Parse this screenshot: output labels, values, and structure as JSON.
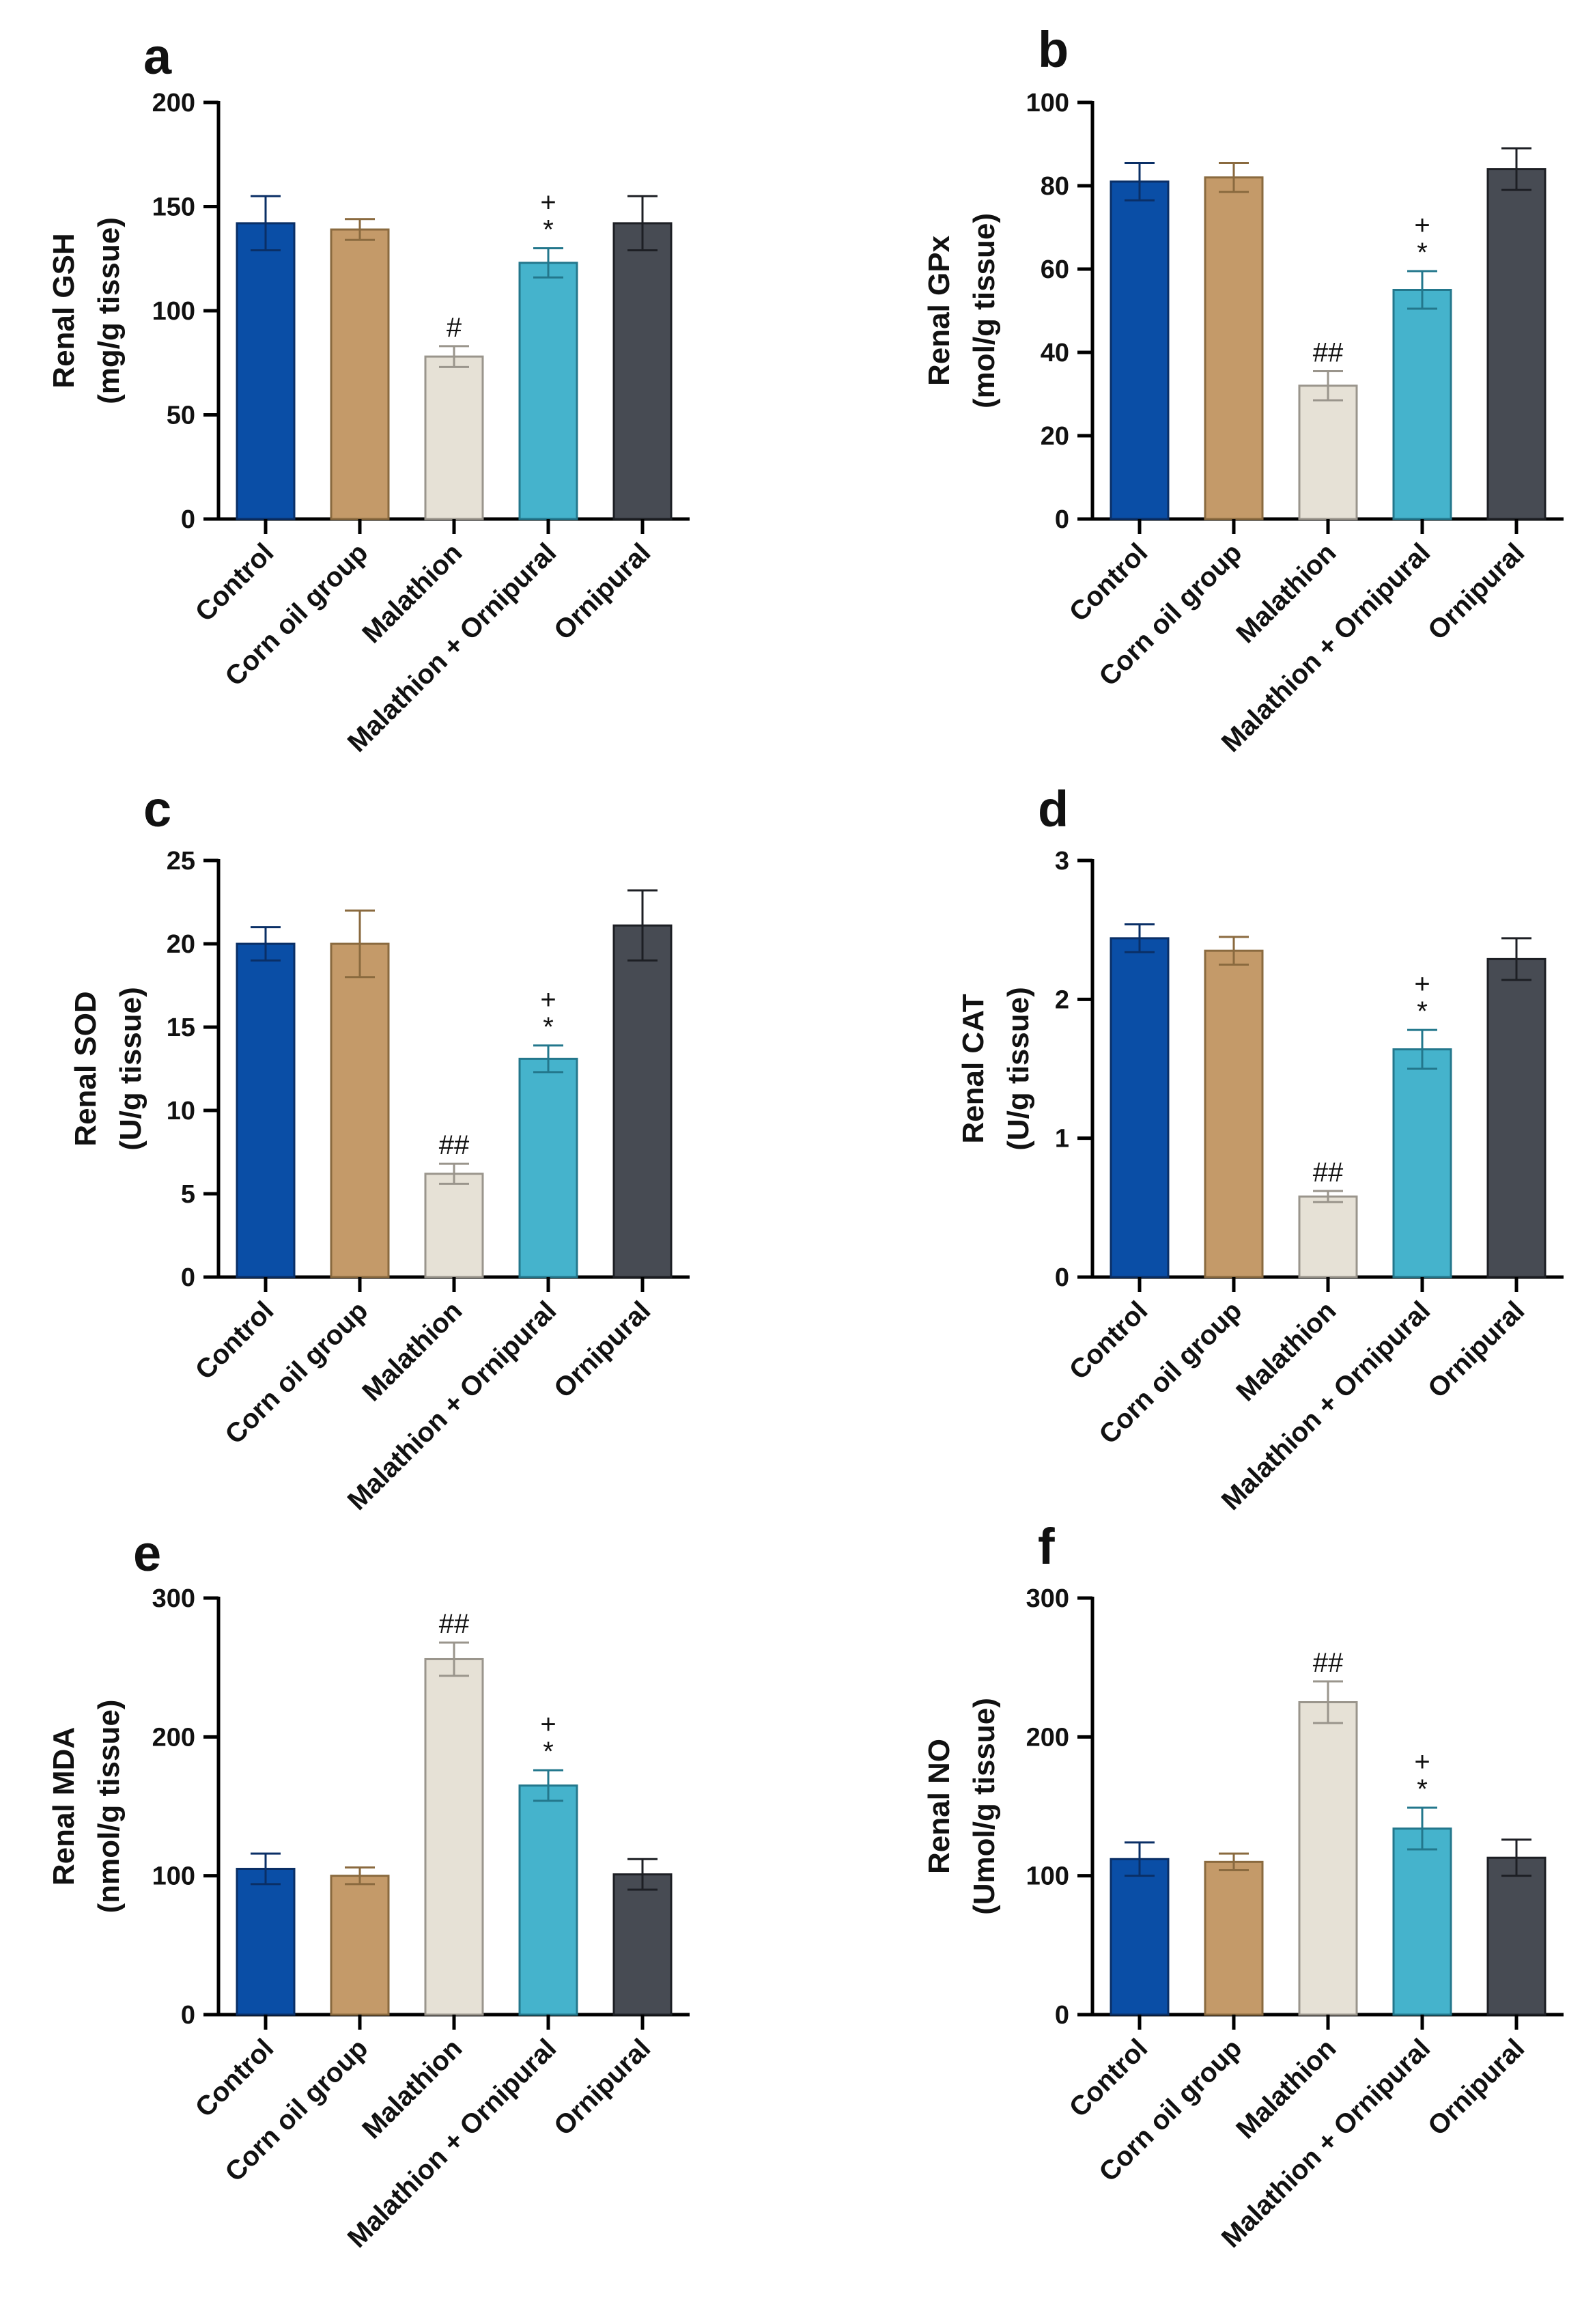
{
  "chart_data": [
    {
      "type": "bar",
      "panel": "a",
      "categories": [
        "Control",
        "Corn oil group",
        "Malathion",
        "Malathion + Ornipural",
        "Ornipural"
      ],
      "values": [
        142,
        139,
        78,
        123,
        142
      ],
      "errors": [
        13,
        5,
        5,
        7,
        13
      ],
      "annotations": [
        "",
        "",
        "#",
        "+\n*",
        ""
      ],
      "ylabel": [
        "Renal GSH",
        "(mg/g tissue)"
      ],
      "ylim": [
        0,
        200
      ],
      "yticks": [
        0,
        50,
        100,
        150,
        200
      ]
    },
    {
      "type": "bar",
      "panel": "b",
      "categories": [
        "Control",
        "Corn oil group",
        "Malathion",
        "Malathion + Ornipural",
        "Ornipural"
      ],
      "values": [
        81,
        82,
        32,
        55,
        84
      ],
      "errors": [
        4.5,
        3.5,
        3.5,
        4.5,
        5
      ],
      "annotations": [
        "",
        "",
        "##",
        "+\n*",
        ""
      ],
      "ylabel": [
        "Renal GPx",
        "(mol/g tissue)"
      ],
      "ylim": [
        0,
        100
      ],
      "yticks": [
        0,
        20,
        40,
        60,
        80,
        100
      ]
    },
    {
      "type": "bar",
      "panel": "c",
      "categories": [
        "Control",
        "Corn oil group",
        "Malathion",
        "Malathion + Ornipural",
        "Ornipural"
      ],
      "values": [
        20,
        20,
        6.2,
        13.1,
        21.1
      ],
      "errors": [
        1,
        2,
        0.6,
        0.8,
        2.1
      ],
      "annotations": [
        "",
        "",
        "##",
        "+\n*",
        ""
      ],
      "ylabel": [
        "Renal SOD",
        "(U/g tissue)"
      ],
      "ylim": [
        0,
        25
      ],
      "yticks": [
        0,
        5,
        10,
        15,
        20,
        25
      ]
    },
    {
      "type": "bar",
      "panel": "d",
      "categories": [
        "Control",
        "Corn oil group",
        "Malathion",
        "Malathion + Ornipural",
        "Ornipural"
      ],
      "values": [
        2.44,
        2.35,
        0.58,
        1.64,
        2.29
      ],
      "errors": [
        0.1,
        0.1,
        0.04,
        0.14,
        0.15
      ],
      "annotations": [
        "",
        "",
        "##",
        "+\n*",
        ""
      ],
      "ylabel": [
        "Renal CAT",
        "(U/g tissue)"
      ],
      "ylim": [
        0,
        3
      ],
      "yticks": [
        0,
        1,
        2,
        3
      ]
    },
    {
      "type": "bar",
      "panel": "e",
      "categories": [
        "Control",
        "Corn oil group",
        "Malathion",
        "Malathion + Ornipural",
        "Ornipural"
      ],
      "values": [
        105,
        100,
        256,
        165,
        101
      ],
      "errors": [
        11,
        6,
        12,
        11,
        11
      ],
      "annotations": [
        "",
        "",
        "##",
        "+\n*",
        ""
      ],
      "ylabel": [
        "Renal MDA",
        "(nmol/g tissue)"
      ],
      "ylim": [
        0,
        300
      ],
      "yticks": [
        0,
        100,
        200,
        300
      ]
    },
    {
      "type": "bar",
      "panel": "f",
      "categories": [
        "Control",
        "Corn oil group",
        "Malathion",
        "Malathion + Ornipural",
        "Ornipural"
      ],
      "values": [
        112,
        110,
        225,
        134,
        113
      ],
      "errors": [
        12,
        6,
        15,
        15,
        13
      ],
      "annotations": [
        "",
        "",
        "##",
        "+\n*",
        ""
      ],
      "ylabel": [
        "Renal NO",
        "(Umol/g tissue)"
      ],
      "ylim": [
        0,
        300
      ],
      "yticks": [
        0,
        100,
        200,
        300
      ]
    }
  ],
  "colors": {
    "fills": [
      "#0a4ea6",
      "#c49a69",
      "#e6e1d6",
      "#45b3cc",
      "#474b53"
    ],
    "errors": [
      "#0a2f66",
      "#8a6a3f",
      "#9a958c",
      "#23778c",
      "#1d1f24"
    ]
  }
}
